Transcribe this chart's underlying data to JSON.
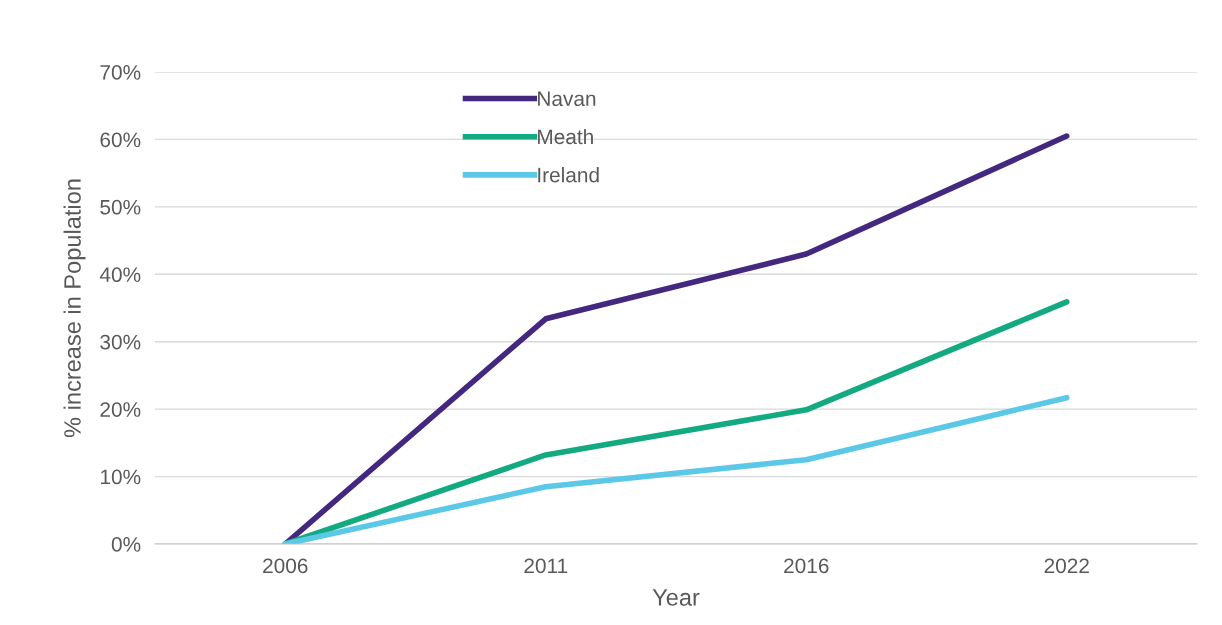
{
  "chart_data": {
    "type": "line",
    "xlabel": "Year",
    "ylabel": "% increase in Population",
    "categories": [
      "2006",
      "2011",
      "2016",
      "2022"
    ],
    "series": [
      {
        "name": "Navan",
        "color": "#44277f",
        "values": [
          0,
          33.4,
          43.0,
          60.5
        ]
      },
      {
        "name": "Meath",
        "color": "#13a981",
        "values": [
          0,
          13.2,
          19.9,
          35.9
        ]
      },
      {
        "name": "Ireland",
        "color": "#5bc8e8",
        "values": [
          0,
          8.5,
          12.5,
          21.7
        ]
      }
    ],
    "ylim": [
      0,
      70
    ],
    "yticks": [
      {
        "value": 0,
        "label": "0%"
      },
      {
        "value": 10,
        "label": "10%"
      },
      {
        "value": 20,
        "label": "20%"
      },
      {
        "value": 30,
        "label": "30%"
      },
      {
        "value": 40,
        "label": "40%"
      },
      {
        "value": 50,
        "label": "50%"
      },
      {
        "value": 60,
        "label": "60%"
      },
      {
        "value": 70,
        "label": "70%"
      }
    ],
    "grid": "y",
    "legend": "top left",
    "marker": "none",
    "line_style": "solid"
  }
}
